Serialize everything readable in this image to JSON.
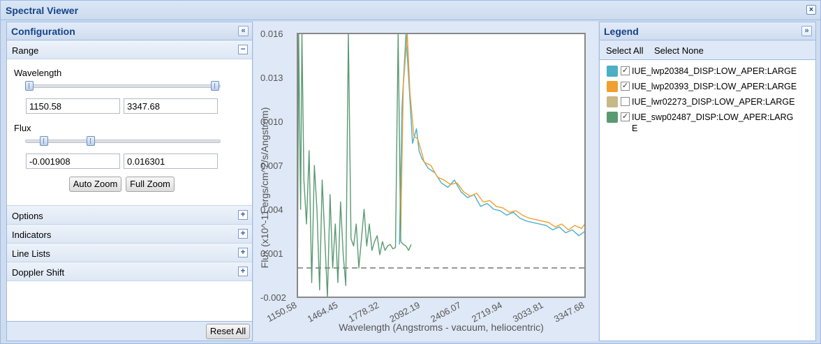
{
  "window": {
    "title": "Spectral Viewer",
    "close_glyph": "×"
  },
  "config": {
    "title": "Configuration",
    "collapse_glyph": "«",
    "range": {
      "title": "Range",
      "toggle_glyph": "−",
      "wavelength_label": "Wavelength",
      "wavelength_min": "1150.58",
      "wavelength_max": "3347.68",
      "flux_label": "Flux",
      "flux_min": "-0.001908",
      "flux_max": "0.016301",
      "auto_zoom": "Auto Zoom",
      "full_zoom": "Full Zoom"
    },
    "sections": [
      {
        "title": "Options",
        "toggle_glyph": "+"
      },
      {
        "title": "Indicators",
        "toggle_glyph": "+"
      },
      {
        "title": "Line Lists",
        "toggle_glyph": "+"
      },
      {
        "title": "Doppler Shift",
        "toggle_glyph": "+"
      }
    ],
    "reset_all": "Reset All"
  },
  "legend": {
    "title": "Legend",
    "expand_glyph": "»",
    "select_all": "Select All",
    "select_none": "Select None",
    "items": [
      {
        "label": "IUE_lwp20384_DISP:LOW_APER:LARGE",
        "color": "#4bafc6",
        "checked": true
      },
      {
        "label": "IUE_lwp20393_DISP:LOW_APER:LARGE",
        "color": "#f0a030",
        "checked": true
      },
      {
        "label": "IUE_lwr02273_DISP:LOW_APER:LARGE",
        "color": "#c8b888",
        "checked": false
      },
      {
        "label": "IUE_swp02487_DISP:LOW_APER:LARGE",
        "color": "#5a9a72",
        "checked": true
      }
    ]
  },
  "chart_data": {
    "type": "line",
    "xlabel": "Wavelength (Angstroms - vacuum, heliocentric)",
    "ylabel": "Flux (x10^-11 ergs/cm^2/s/Angstrom)",
    "xlim": [
      1150.58,
      3347.68
    ],
    "ylim": [
      -0.002,
      0.016
    ],
    "x_ticks": [
      "1150.58",
      "1464.45",
      "1778.32",
      "2092.19",
      "2406.07",
      "2719.94",
      "3033.81",
      "3347.68"
    ],
    "y_ticks": [
      "0.016",
      "0.013",
      "0.010",
      "0.007",
      "0.004",
      "0.001",
      "-0.002"
    ],
    "zero_line": 0,
    "series": [
      {
        "name": "IUE_lwp20384_DISP:LOW_APER:LARGE",
        "color": "#4bafc6",
        "x": [
          1930,
          1950,
          1980,
          2000,
          2030,
          2060,
          2080,
          2100,
          2150,
          2200,
          2250,
          2300,
          2350,
          2400,
          2450,
          2500,
          2550,
          2600,
          2650,
          2700,
          2750,
          2800,
          2850,
          2900,
          2950,
          3000,
          3050,
          3100,
          3150,
          3200,
          3250,
          3300,
          3347
        ],
        "y": [
          0.0016,
          0.011,
          0.016,
          0.013,
          0.0085,
          0.0095,
          0.008,
          0.0075,
          0.0068,
          0.0065,
          0.0058,
          0.0055,
          0.006,
          0.0052,
          0.0048,
          0.005,
          0.0042,
          0.0044,
          0.004,
          0.0039,
          0.0036,
          0.0038,
          0.0034,
          0.0032,
          0.0031,
          0.003,
          0.0029,
          0.0026,
          0.0028,
          0.0024,
          0.0026,
          0.0022,
          0.0025
        ]
      },
      {
        "name": "IUE_lwp20393_DISP:LOW_APER:LARGE",
        "color": "#f0a030",
        "x": [
          1940,
          1960,
          1990,
          2010,
          2040,
          2070,
          2090,
          2120,
          2170,
          2220,
          2270,
          2320,
          2370,
          2420,
          2470,
          2520,
          2570,
          2620,
          2670,
          2720,
          2770,
          2820,
          2870,
          2920,
          2970,
          3020,
          3070,
          3120,
          3170,
          3220,
          3270,
          3320,
          3347
        ],
        "y": [
          0.0025,
          0.0125,
          0.016,
          0.012,
          0.009,
          0.0088,
          0.0082,
          0.0072,
          0.007,
          0.0062,
          0.006,
          0.0057,
          0.0058,
          0.0052,
          0.0049,
          0.0051,
          0.0045,
          0.0046,
          0.0042,
          0.0041,
          0.0038,
          0.0039,
          0.0036,
          0.0034,
          0.0033,
          0.0032,
          0.0031,
          0.0028,
          0.003,
          0.0026,
          0.0029,
          0.0027,
          0.003
        ]
      },
      {
        "name": "IUE_swp02487_DISP:LOW_APER:LARGE",
        "color": "#5a9a72",
        "x": [
          1150.58,
          1160,
          1175,
          1185,
          1200,
          1220,
          1240,
          1260,
          1280,
          1300,
          1320,
          1340,
          1360,
          1380,
          1400,
          1420,
          1440,
          1460,
          1480,
          1500,
          1520,
          1540,
          1560,
          1580,
          1600,
          1620,
          1640,
          1660,
          1680,
          1700,
          1720,
          1740,
          1760,
          1780,
          1800,
          1820,
          1840,
          1860,
          1880,
          1900,
          1920,
          1940,
          1960,
          1980,
          2000,
          2020
        ],
        "y": [
          -0.002,
          0.016,
          0.004,
          0.016,
          0.006,
          0.003,
          0.008,
          -0.001,
          0.007,
          0.004,
          -0.0015,
          0.006,
          0.002,
          -0.002,
          0.005,
          0.0,
          0.003,
          -0.001,
          0.0045,
          0.001,
          -0.0012,
          0.016,
          0.002,
          0.0015,
          0.003,
          0.0,
          0.002,
          0.004,
          0.0015,
          0.003,
          0.0012,
          0.0018,
          0.0022,
          0.0009,
          0.0018,
          0.0012,
          0.0015,
          0.0016,
          0.0013,
          0.0014,
          0.016,
          0.0018,
          0.0016,
          0.0015,
          0.0012,
          0.0016
        ]
      }
    ]
  }
}
